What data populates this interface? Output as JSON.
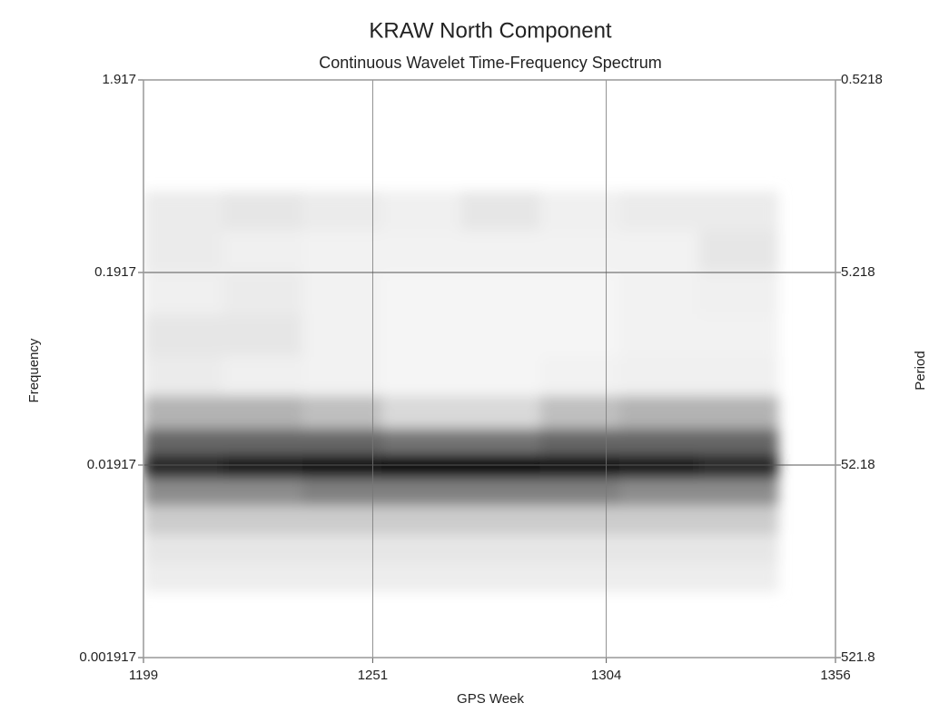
{
  "chart_data": {
    "type": "heatmap",
    "title": "KRAW North Component",
    "subtitle": "Continuous Wavelet Time-Frequency Spectrum",
    "x_label": "GPS Week",
    "y_label": "Frequency",
    "y2_label": "Period",
    "xlim": [
      1199,
      1356
    ],
    "xticks": [
      1199,
      1251,
      1304,
      1356
    ],
    "ylim": [
      0.001917,
      1.917
    ],
    "yticks": [
      0.001917,
      0.01917,
      0.1917,
      1.917
    ],
    "y2lim": [
      521.8,
      0.5218
    ],
    "y2ticks": [
      521.8,
      52.18,
      5.218,
      0.5218
    ],
    "log_y": true,
    "grid": true,
    "x": [
      1208,
      1226,
      1244,
      1262,
      1280,
      1298,
      1316,
      1334
    ],
    "y": [
      0.4,
      0.25,
      0.15,
      0.09,
      0.055,
      0.035,
      0.025,
      0.019,
      0.014,
      0.01,
      0.007,
      0.005
    ],
    "values": [
      [
        0.08,
        0.1,
        0.08,
        0.06,
        0.1,
        0.06,
        0.08,
        0.08
      ],
      [
        0.08,
        0.06,
        0.05,
        0.05,
        0.05,
        0.05,
        0.05,
        0.1
      ],
      [
        0.06,
        0.08,
        0.05,
        0.04,
        0.04,
        0.04,
        0.05,
        0.06
      ],
      [
        0.1,
        0.1,
        0.05,
        0.04,
        0.04,
        0.04,
        0.05,
        0.05
      ],
      [
        0.08,
        0.06,
        0.05,
        0.04,
        0.04,
        0.05,
        0.06,
        0.06
      ],
      [
        0.3,
        0.3,
        0.25,
        0.15,
        0.15,
        0.25,
        0.3,
        0.3
      ],
      [
        0.6,
        0.6,
        0.6,
        0.55,
        0.55,
        0.6,
        0.6,
        0.6
      ],
      [
        0.85,
        0.9,
        0.95,
        0.98,
        0.98,
        0.95,
        0.9,
        0.85
      ],
      [
        0.45,
        0.45,
        0.5,
        0.5,
        0.5,
        0.5,
        0.45,
        0.45
      ],
      [
        0.2,
        0.2,
        0.2,
        0.2,
        0.2,
        0.2,
        0.2,
        0.2
      ],
      [
        0.1,
        0.1,
        0.1,
        0.1,
        0.1,
        0.1,
        0.1,
        0.1
      ],
      [
        0.07,
        0.07,
        0.07,
        0.07,
        0.07,
        0.07,
        0.07,
        0.07
      ]
    ]
  }
}
